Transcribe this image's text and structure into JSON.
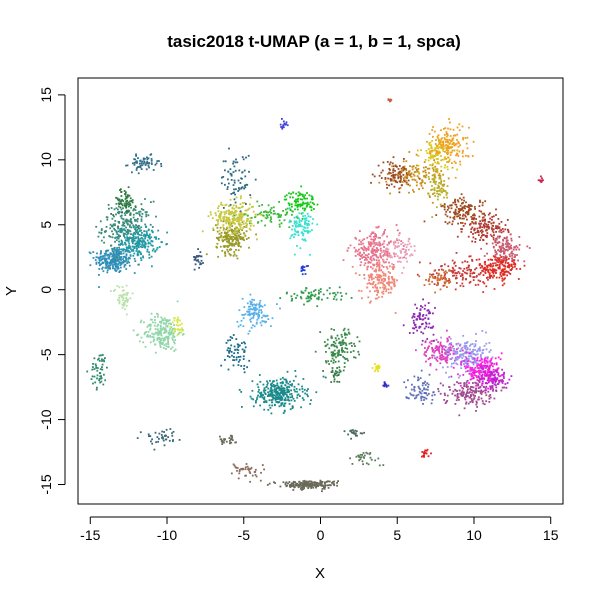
{
  "chart_data": {
    "type": "scatter",
    "title": "tasic2018 t-UMAP (a = 1, b = 1, spca)",
    "xlabel": "X",
    "ylabel": "Y",
    "xlim": [
      -15.8,
      15.8
    ],
    "ylim": [
      -16.5,
      16.3
    ],
    "x_ticks": [
      -15,
      -10,
      -5,
      0,
      5,
      10,
      15
    ],
    "y_ticks": [
      -15,
      -10,
      -5,
      0,
      5,
      10,
      15
    ],
    "grid": false,
    "legend": "none",
    "clusters": [
      {
        "x": -13.5,
        "y": 2.3,
        "sx": 0.6,
        "sy": 0.5,
        "n": 260,
        "color": "#2f8fb8"
      },
      {
        "x": -12.6,
        "y": 4.8,
        "sx": 0.8,
        "sy": 1.0,
        "n": 260,
        "color": "#3a8a7a"
      },
      {
        "x": -11.8,
        "y": 3.6,
        "sx": 0.6,
        "sy": 0.6,
        "n": 180,
        "color": "#1f9aa6"
      },
      {
        "x": -12.8,
        "y": 6.8,
        "sx": 0.4,
        "sy": 0.5,
        "n": 60,
        "color": "#2e7a3c"
      },
      {
        "x": -11.5,
        "y": 9.7,
        "sx": 0.5,
        "sy": 0.3,
        "n": 60,
        "color": "#2f6f8a"
      },
      {
        "x": -12.9,
        "y": -0.6,
        "sx": 0.3,
        "sy": 0.5,
        "n": 50,
        "color": "#b8e0a8"
      },
      {
        "x": -10.3,
        "y": -3.3,
        "sx": 0.6,
        "sy": 0.7,
        "n": 200,
        "color": "#8fd6a8"
      },
      {
        "x": -9.3,
        "y": -2.8,
        "sx": 0.2,
        "sy": 0.4,
        "n": 30,
        "color": "#d8e84a"
      },
      {
        "x": -14.4,
        "y": -6.2,
        "sx": 0.3,
        "sy": 0.7,
        "n": 50,
        "color": "#2e8a6a"
      },
      {
        "x": -7.9,
        "y": 2.5,
        "sx": 0.15,
        "sy": 0.4,
        "n": 25,
        "color": "#3a5a80"
      },
      {
        "x": -5.8,
        "y": 4.0,
        "sx": 0.5,
        "sy": 0.6,
        "n": 200,
        "color": "#9a9a28"
      },
      {
        "x": -5.6,
        "y": 5.6,
        "sx": 0.7,
        "sy": 0.6,
        "n": 220,
        "color": "#c8c840"
      },
      {
        "x": -5.5,
        "y": 8.5,
        "sx": 0.5,
        "sy": 1.0,
        "n": 70,
        "color": "#2e6a80"
      },
      {
        "x": -3.2,
        "y": 5.8,
        "sx": 0.8,
        "sy": 0.4,
        "n": 70,
        "color": "#3ab83a"
      },
      {
        "x": -1.3,
        "y": 6.8,
        "sx": 0.5,
        "sy": 0.4,
        "n": 90,
        "color": "#16c816"
      },
      {
        "x": -1.2,
        "y": 4.8,
        "sx": 0.4,
        "sy": 0.8,
        "n": 90,
        "color": "#38e0d0"
      },
      {
        "x": -2.4,
        "y": 12.6,
        "sx": 0.1,
        "sy": 0.2,
        "n": 15,
        "color": "#4040d8"
      },
      {
        "x": -1.1,
        "y": 1.6,
        "sx": 0.1,
        "sy": 0.2,
        "n": 15,
        "color": "#2040d8"
      },
      {
        "x": -0.3,
        "y": -0.4,
        "sx": 1.0,
        "sy": 0.3,
        "n": 70,
        "color": "#2e9a4a"
      },
      {
        "x": -4.3,
        "y": -1.8,
        "sx": 0.6,
        "sy": 0.6,
        "n": 110,
        "color": "#5ab0e8"
      },
      {
        "x": -5.4,
        "y": -4.8,
        "sx": 0.4,
        "sy": 0.6,
        "n": 60,
        "color": "#1a6a8a"
      },
      {
        "x": -2.7,
        "y": -8.0,
        "sx": 0.8,
        "sy": 0.6,
        "n": 300,
        "color": "#1a8a8a"
      },
      {
        "x": 1.2,
        "y": -4.5,
        "sx": 0.6,
        "sy": 0.7,
        "n": 120,
        "color": "#3a8a4a"
      },
      {
        "x": 1.0,
        "y": -6.5,
        "sx": 0.3,
        "sy": 0.3,
        "n": 25,
        "color": "#3a7a4a"
      },
      {
        "x": 3.7,
        "y": -6.0,
        "sx": 0.15,
        "sy": 0.15,
        "n": 20,
        "color": "#e8e020"
      },
      {
        "x": 4.2,
        "y": -7.3,
        "sx": 0.1,
        "sy": 0.15,
        "n": 12,
        "color": "#3030c8"
      },
      {
        "x": 3.5,
        "y": 3.0,
        "sx": 0.8,
        "sy": 0.7,
        "n": 220,
        "color": "#e8708a"
      },
      {
        "x": 3.9,
        "y": 0.6,
        "sx": 0.6,
        "sy": 0.7,
        "n": 160,
        "color": "#f08878"
      },
      {
        "x": 5.2,
        "y": 3.0,
        "sx": 0.6,
        "sy": 0.5,
        "n": 70,
        "color": "#e8a0b8"
      },
      {
        "x": 4.9,
        "y": 8.8,
        "sx": 0.6,
        "sy": 0.5,
        "n": 100,
        "color": "#9a4a20"
      },
      {
        "x": 6.5,
        "y": 8.8,
        "sx": 0.8,
        "sy": 0.6,
        "n": 110,
        "color": "#c8901a"
      },
      {
        "x": 7.6,
        "y": 10.5,
        "sx": 0.5,
        "sy": 0.6,
        "n": 100,
        "color": "#d8c820"
      },
      {
        "x": 8.4,
        "y": 11.2,
        "sx": 0.6,
        "sy": 0.8,
        "n": 150,
        "color": "#f0a020"
      },
      {
        "x": 7.7,
        "y": 7.8,
        "sx": 0.3,
        "sy": 0.8,
        "n": 70,
        "color": "#b8b028"
      },
      {
        "x": 9.3,
        "y": 6.0,
        "sx": 0.7,
        "sy": 0.5,
        "n": 140,
        "color": "#a04a20"
      },
      {
        "x": 10.8,
        "y": 4.7,
        "sx": 0.7,
        "sy": 0.5,
        "n": 130,
        "color": "#b03a30"
      },
      {
        "x": 12.0,
        "y": 3.0,
        "sx": 0.5,
        "sy": 0.6,
        "n": 140,
        "color": "#c85a70"
      },
      {
        "x": 11.6,
        "y": 1.6,
        "sx": 0.7,
        "sy": 0.5,
        "n": 160,
        "color": "#e02a20"
      },
      {
        "x": 9.0,
        "y": 1.3,
        "sx": 1.0,
        "sy": 0.5,
        "n": 120,
        "color": "#c83a3a"
      },
      {
        "x": 7.9,
        "y": 0.9,
        "sx": 0.5,
        "sy": 0.4,
        "n": 50,
        "color": "#d06a30"
      },
      {
        "x": 14.4,
        "y": 8.5,
        "sx": 0.08,
        "sy": 0.15,
        "n": 10,
        "color": "#d02050"
      },
      {
        "x": 4.5,
        "y": 14.6,
        "sx": 0.1,
        "sy": 0.05,
        "n": 8,
        "color": "#c86040"
      },
      {
        "x": 6.6,
        "y": -2.3,
        "sx": 0.4,
        "sy": 0.6,
        "n": 80,
        "color": "#8a2ab0"
      },
      {
        "x": 7.8,
        "y": -4.8,
        "sx": 0.6,
        "sy": 0.5,
        "n": 130,
        "color": "#e040c0"
      },
      {
        "x": 9.6,
        "y": -5.1,
        "sx": 0.7,
        "sy": 0.7,
        "n": 200,
        "color": "#9898f0"
      },
      {
        "x": 10.6,
        "y": -6.2,
        "sx": 0.6,
        "sy": 0.6,
        "n": 180,
        "color": "#ff20e0"
      },
      {
        "x": 11.2,
        "y": -6.8,
        "sx": 0.5,
        "sy": 0.5,
        "n": 110,
        "color": "#c020d0"
      },
      {
        "x": 9.6,
        "y": -7.9,
        "sx": 0.8,
        "sy": 0.5,
        "n": 160,
        "color": "#a04a90"
      },
      {
        "x": 6.5,
        "y": -7.7,
        "sx": 0.5,
        "sy": 0.5,
        "n": 70,
        "color": "#6070b8"
      },
      {
        "x": 6.8,
        "y": -12.6,
        "sx": 0.15,
        "sy": 0.2,
        "n": 15,
        "color": "#e02020"
      },
      {
        "x": -10.3,
        "y": -11.4,
        "sx": 0.7,
        "sy": 0.3,
        "n": 40,
        "color": "#3a6a7a"
      },
      {
        "x": -6.2,
        "y": -11.5,
        "sx": 0.3,
        "sy": 0.2,
        "n": 30,
        "color": "#6a6a5a"
      },
      {
        "x": 2.2,
        "y": -11.0,
        "sx": 0.3,
        "sy": 0.15,
        "n": 20,
        "color": "#4a6a5a"
      },
      {
        "x": 2.8,
        "y": -13.0,
        "sx": 0.6,
        "sy": 0.3,
        "n": 30,
        "color": "#5a7a5a"
      },
      {
        "x": -4.8,
        "y": -14.0,
        "sx": 0.6,
        "sy": 0.4,
        "n": 40,
        "color": "#8a6a5a"
      },
      {
        "x": -0.8,
        "y": -15.0,
        "sx": 0.9,
        "sy": 0.15,
        "n": 200,
        "color": "#6a6a5a"
      }
    ]
  }
}
